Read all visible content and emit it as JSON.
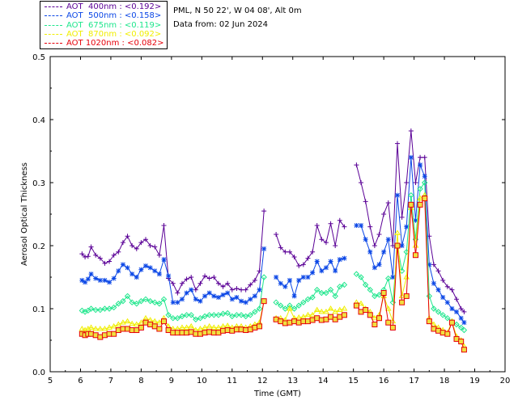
{
  "header": {
    "station": "PML, N 50 22', W 04 08', Alt 0m",
    "date_line": "Data from: 02 Jun 2024"
  },
  "legend": [
    {
      "label": "AOT  400nm : <0.192>",
      "color": "#5a0096"
    },
    {
      "label": "AOT  500nm : <0.158>",
      "color": "#0a46e6"
    },
    {
      "label": "AOT  675nm : <0.119>",
      "color": "#1ee68c"
    },
    {
      "label": "AOT  870nm : <0.092>",
      "color": "#f0ee00"
    },
    {
      "label": "AOT 1020nm : <0.082>",
      "color": "#e6000a"
    }
  ],
  "chart_data": {
    "type": "line",
    "title": "",
    "xlabel": "Time (GMT)",
    "ylabel": "Aerosol Optical Thickness",
    "xlim": [
      5,
      20
    ],
    "ylim": [
      0.0,
      0.5
    ],
    "xticks": [
      "5",
      "6",
      "7",
      "8",
      "9",
      "10",
      "11",
      "12",
      "13",
      "14",
      "15",
      "16",
      "17",
      "18",
      "19",
      "20"
    ],
    "yticks": [
      "0.0",
      "0.1",
      "0.2",
      "0.3",
      "0.4",
      "0.5"
    ],
    "grid": false,
    "legend_position": "top-left-outside",
    "series": [
      {
        "name": "AOT  400nm : <0.192>",
        "color": "#5a0096",
        "marker": "plus",
        "x": [
          6.05,
          6.15,
          6.25,
          6.35,
          6.5,
          6.65,
          6.8,
          6.95,
          7.1,
          7.25,
          7.4,
          7.55,
          7.7,
          7.85,
          8.0,
          8.15,
          8.3,
          8.45,
          8.6,
          8.75,
          8.9,
          9.05,
          9.2,
          9.35,
          9.5,
          9.65,
          9.8,
          9.95,
          10.1,
          10.25,
          10.4,
          10.55,
          10.7,
          10.85,
          11.0,
          11.15,
          11.3,
          11.45,
          11.6,
          11.75,
          11.9,
          12.05,
          12.45,
          12.6,
          12.75,
          12.9,
          13.05,
          13.2,
          13.35,
          13.5,
          13.65,
          13.8,
          13.95,
          14.1,
          14.25,
          14.4,
          14.55,
          14.7,
          15.1,
          15.25,
          15.4,
          15.55,
          15.7,
          15.85,
          16.0,
          16.15,
          16.3,
          16.45,
          16.6,
          16.75,
          16.9,
          17.05,
          17.2,
          17.35,
          17.5,
          17.65,
          17.8,
          17.95,
          18.1,
          18.25,
          18.4,
          18.55,
          18.65
        ],
        "y": [
          0.187,
          0.182,
          0.183,
          0.198,
          0.185,
          0.18,
          0.172,
          0.175,
          0.185,
          0.19,
          0.205,
          0.215,
          0.2,
          0.195,
          0.205,
          0.21,
          0.2,
          0.198,
          0.185,
          0.232,
          0.148,
          0.14,
          0.125,
          0.14,
          0.147,
          0.15,
          0.13,
          0.14,
          0.152,
          0.148,
          0.15,
          0.14,
          0.135,
          0.14,
          0.13,
          0.132,
          0.13,
          0.13,
          0.138,
          0.145,
          0.16,
          0.255,
          0.218,
          0.197,
          0.19,
          0.19,
          0.182,
          0.168,
          0.17,
          0.18,
          0.19,
          0.232,
          0.21,
          0.205,
          0.235,
          0.2,
          0.24,
          0.23,
          0.328,
          0.3,
          0.27,
          0.23,
          0.2,
          0.218,
          0.25,
          0.268,
          0.2,
          0.362,
          0.245,
          0.3,
          0.382,
          0.3,
          0.34,
          0.34,
          0.215,
          0.17,
          0.16,
          0.145,
          0.135,
          0.13,
          0.115,
          0.1,
          0.095
        ]
      },
      {
        "name": "AOT  500nm : <0.158>",
        "color": "#0a46e6",
        "marker": "asterisk",
        "x": [
          6.05,
          6.15,
          6.25,
          6.35,
          6.5,
          6.65,
          6.8,
          6.95,
          7.1,
          7.25,
          7.4,
          7.55,
          7.7,
          7.85,
          8.0,
          8.15,
          8.3,
          8.45,
          8.6,
          8.75,
          8.9,
          9.05,
          9.2,
          9.35,
          9.5,
          9.65,
          9.8,
          9.95,
          10.1,
          10.25,
          10.4,
          10.55,
          10.7,
          10.85,
          11.0,
          11.15,
          11.3,
          11.45,
          11.6,
          11.75,
          11.9,
          12.05,
          12.45,
          12.6,
          12.75,
          12.9,
          13.05,
          13.2,
          13.35,
          13.5,
          13.65,
          13.8,
          13.95,
          14.1,
          14.25,
          14.4,
          14.55,
          14.7,
          15.1,
          15.25,
          15.4,
          15.55,
          15.7,
          15.85,
          16.0,
          16.15,
          16.3,
          16.45,
          16.6,
          16.75,
          16.9,
          17.05,
          17.2,
          17.35,
          17.5,
          17.65,
          17.8,
          17.95,
          18.1,
          18.25,
          18.4,
          18.55,
          18.65
        ],
        "y": [
          0.145,
          0.142,
          0.147,
          0.155,
          0.148,
          0.145,
          0.145,
          0.142,
          0.148,
          0.16,
          0.17,
          0.165,
          0.155,
          0.15,
          0.162,
          0.168,
          0.165,
          0.16,
          0.155,
          0.178,
          0.152,
          0.11,
          0.11,
          0.115,
          0.125,
          0.13,
          0.115,
          0.112,
          0.12,
          0.125,
          0.12,
          0.118,
          0.122,
          0.125,
          0.115,
          0.118,
          0.112,
          0.11,
          0.115,
          0.12,
          0.13,
          0.195,
          0.15,
          0.14,
          0.135,
          0.145,
          0.12,
          0.145,
          0.15,
          0.15,
          0.157,
          0.175,
          0.16,
          0.165,
          0.175,
          0.16,
          0.178,
          0.18,
          0.232,
          0.232,
          0.21,
          0.19,
          0.165,
          0.17,
          0.19,
          0.21,
          0.15,
          0.28,
          0.2,
          0.23,
          0.34,
          0.24,
          0.328,
          0.31,
          0.17,
          0.14,
          0.13,
          0.118,
          0.11,
          0.1,
          0.095,
          0.085,
          0.078
        ]
      },
      {
        "name": "AOT  675nm : <0.119>",
        "color": "#1ee68c",
        "marker": "diamond",
        "x": [
          6.05,
          6.15,
          6.25,
          6.35,
          6.5,
          6.65,
          6.8,
          6.95,
          7.1,
          7.25,
          7.4,
          7.55,
          7.7,
          7.85,
          8.0,
          8.15,
          8.3,
          8.45,
          8.6,
          8.75,
          8.9,
          9.05,
          9.2,
          9.35,
          9.5,
          9.65,
          9.8,
          9.95,
          10.1,
          10.25,
          10.4,
          10.55,
          10.7,
          10.85,
          11.0,
          11.15,
          11.3,
          11.45,
          11.6,
          11.75,
          11.9,
          12.05,
          12.45,
          12.6,
          12.75,
          12.9,
          13.05,
          13.2,
          13.35,
          13.5,
          13.65,
          13.8,
          13.95,
          14.1,
          14.25,
          14.4,
          14.55,
          14.7,
          15.1,
          15.25,
          15.4,
          15.55,
          15.7,
          15.85,
          16.0,
          16.15,
          16.3,
          16.45,
          16.6,
          16.75,
          16.9,
          17.05,
          17.2,
          17.35,
          17.5,
          17.65,
          17.8,
          17.95,
          18.1,
          18.25,
          18.4,
          18.55,
          18.65
        ],
        "y": [
          0.097,
          0.095,
          0.097,
          0.1,
          0.098,
          0.098,
          0.1,
          0.1,
          0.102,
          0.108,
          0.112,
          0.12,
          0.11,
          0.108,
          0.112,
          0.115,
          0.112,
          0.11,
          0.108,
          0.115,
          0.09,
          0.085,
          0.085,
          0.088,
          0.09,
          0.09,
          0.083,
          0.085,
          0.088,
          0.09,
          0.09,
          0.09,
          0.092,
          0.093,
          0.088,
          0.09,
          0.09,
          0.088,
          0.09,
          0.095,
          0.1,
          0.15,
          0.11,
          0.105,
          0.1,
          0.105,
          0.1,
          0.105,
          0.11,
          0.115,
          0.118,
          0.13,
          0.125,
          0.125,
          0.13,
          0.12,
          0.135,
          0.138,
          0.155,
          0.15,
          0.138,
          0.13,
          0.12,
          0.122,
          0.13,
          0.148,
          0.11,
          0.2,
          0.16,
          0.19,
          0.28,
          0.21,
          0.29,
          0.3,
          0.12,
          0.1,
          0.095,
          0.09,
          0.085,
          0.08,
          0.075,
          0.07,
          0.066
        ]
      },
      {
        "name": "AOT  870nm : <0.092>",
        "color": "#f0ee00",
        "marker": "triangle",
        "x": [
          6.05,
          6.15,
          6.25,
          6.35,
          6.5,
          6.65,
          6.8,
          6.95,
          7.1,
          7.25,
          7.4,
          7.55,
          7.7,
          7.85,
          8.0,
          8.15,
          8.3,
          8.45,
          8.6,
          8.75,
          8.9,
          9.05,
          9.2,
          9.35,
          9.5,
          9.65,
          9.8,
          9.95,
          10.1,
          10.25,
          10.4,
          10.55,
          10.7,
          10.85,
          11.0,
          11.15,
          11.3,
          11.45,
          11.6,
          11.75,
          11.9,
          12.05,
          12.45,
          12.6,
          12.75,
          12.9,
          13.05,
          13.2,
          13.35,
          13.5,
          13.65,
          13.8,
          13.95,
          14.1,
          14.25,
          14.4,
          14.55,
          14.7,
          15.1,
          15.25,
          15.4,
          15.55,
          15.7,
          15.85,
          16.0,
          16.15,
          16.3,
          16.45,
          16.6,
          16.75,
          16.9,
          17.05,
          17.2,
          17.35,
          17.5,
          17.65,
          17.8,
          17.95,
          18.1,
          18.25,
          18.4,
          18.55,
          18.65
        ],
        "y": [
          0.068,
          0.066,
          0.068,
          0.07,
          0.068,
          0.068,
          0.068,
          0.07,
          0.072,
          0.075,
          0.078,
          0.08,
          0.076,
          0.075,
          0.078,
          0.085,
          0.082,
          0.08,
          0.078,
          0.085,
          0.072,
          0.068,
          0.068,
          0.07,
          0.07,
          0.072,
          0.066,
          0.068,
          0.07,
          0.072,
          0.07,
          0.07,
          0.072,
          0.073,
          0.07,
          0.072,
          0.072,
          0.07,
          0.072,
          0.075,
          0.078,
          0.112,
          0.085,
          0.085,
          0.082,
          0.1,
          0.085,
          0.086,
          0.087,
          0.09,
          0.09,
          0.098,
          0.095,
          0.095,
          0.1,
          0.095,
          0.098,
          0.1,
          0.11,
          0.108,
          0.1,
          0.095,
          0.085,
          0.09,
          0.12,
          0.1,
          0.08,
          0.22,
          0.12,
          0.15,
          0.26,
          0.2,
          0.275,
          0.28,
          0.085,
          0.075,
          0.07,
          0.066,
          0.062,
          0.08,
          0.056,
          0.05,
          0.04
        ]
      },
      {
        "name": "AOT 1020nm : <0.082>",
        "color": "#e6000a",
        "marker": "square",
        "x": [
          6.05,
          6.15,
          6.25,
          6.35,
          6.5,
          6.65,
          6.8,
          6.95,
          7.1,
          7.25,
          7.4,
          7.55,
          7.7,
          7.85,
          8.0,
          8.15,
          8.3,
          8.45,
          8.6,
          8.75,
          8.9,
          9.05,
          9.2,
          9.35,
          9.5,
          9.65,
          9.8,
          9.95,
          10.1,
          10.25,
          10.4,
          10.55,
          10.7,
          10.85,
          11.0,
          11.15,
          11.3,
          11.45,
          11.6,
          11.75,
          11.9,
          12.05,
          12.45,
          12.6,
          12.75,
          12.9,
          13.05,
          13.2,
          13.35,
          13.5,
          13.65,
          13.8,
          13.95,
          14.1,
          14.25,
          14.4,
          14.55,
          14.7,
          15.1,
          15.25,
          15.4,
          15.55,
          15.7,
          15.85,
          16.0,
          16.15,
          16.3,
          16.45,
          16.6,
          16.75,
          16.9,
          17.05,
          17.2,
          17.35,
          17.5,
          17.65,
          17.8,
          17.95,
          18.1,
          18.25,
          18.4,
          18.55,
          18.65
        ],
        "y": [
          0.06,
          0.058,
          0.06,
          0.06,
          0.058,
          0.055,
          0.058,
          0.06,
          0.06,
          0.066,
          0.068,
          0.068,
          0.066,
          0.066,
          0.07,
          0.078,
          0.075,
          0.072,
          0.068,
          0.08,
          0.066,
          0.062,
          0.062,
          0.062,
          0.062,
          0.063,
          0.06,
          0.06,
          0.062,
          0.063,
          0.062,
          0.062,
          0.065,
          0.066,
          0.065,
          0.067,
          0.067,
          0.066,
          0.067,
          0.07,
          0.072,
          0.112,
          0.083,
          0.08,
          0.077,
          0.078,
          0.08,
          0.078,
          0.08,
          0.08,
          0.082,
          0.085,
          0.082,
          0.083,
          0.087,
          0.083,
          0.087,
          0.09,
          0.105,
          0.095,
          0.098,
          0.09,
          0.075,
          0.085,
          0.125,
          0.078,
          0.07,
          0.2,
          0.11,
          0.12,
          0.265,
          0.185,
          0.265,
          0.275,
          0.08,
          0.068,
          0.065,
          0.062,
          0.06,
          0.078,
          0.052,
          0.048,
          0.035
        ]
      }
    ]
  }
}
